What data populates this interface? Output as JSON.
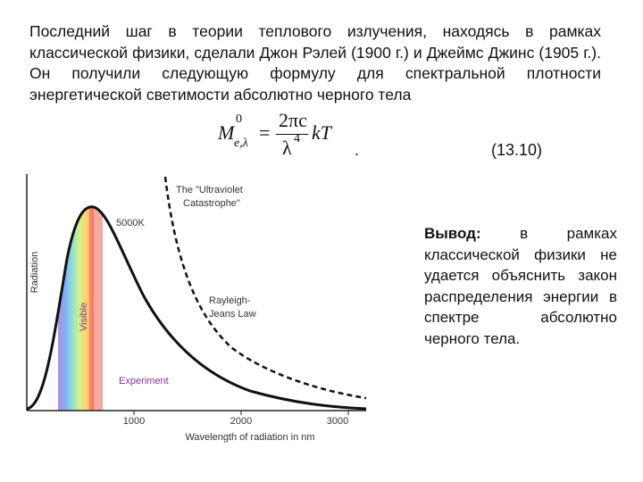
{
  "body": {
    "paragraph": "Последний шаг в теории теплового излучения, находясь в рамках классической физики, сделали Джон Рэлей (1900 г.) и Джеймс Джинс (1905 г.). Он получили следующую формулу для спектральной плотности энергетической светимости абсолютно черного тела",
    "formula": {
      "symbol": "M",
      "superscript": "0",
      "subscript": "e,λ",
      "equals": "=",
      "numerator": "2πc",
      "denominator": "λ",
      "power": "4",
      "factor": "kT"
    },
    "dot": ".",
    "equation_number": "(13.10)",
    "conclusion": {
      "label": "Вывод:",
      "text": "в рамках классической физики не удается объяснить закон распределения энергии в спектре абсолютно черного тела."
    }
  },
  "figure": {
    "y_label": "Radiation",
    "x_label": "Wavelength of radiation in nm",
    "x_ticks": [
      "1000",
      "2000",
      "3000"
    ],
    "visible": "Visible",
    "temperature": "5000K",
    "catastrophe": [
      "The \"Ultraviolet",
      "Catastrophe\""
    ],
    "law": [
      "Rayleigh-",
      "Jeans Law"
    ],
    "experiment": "Experiment"
  }
}
